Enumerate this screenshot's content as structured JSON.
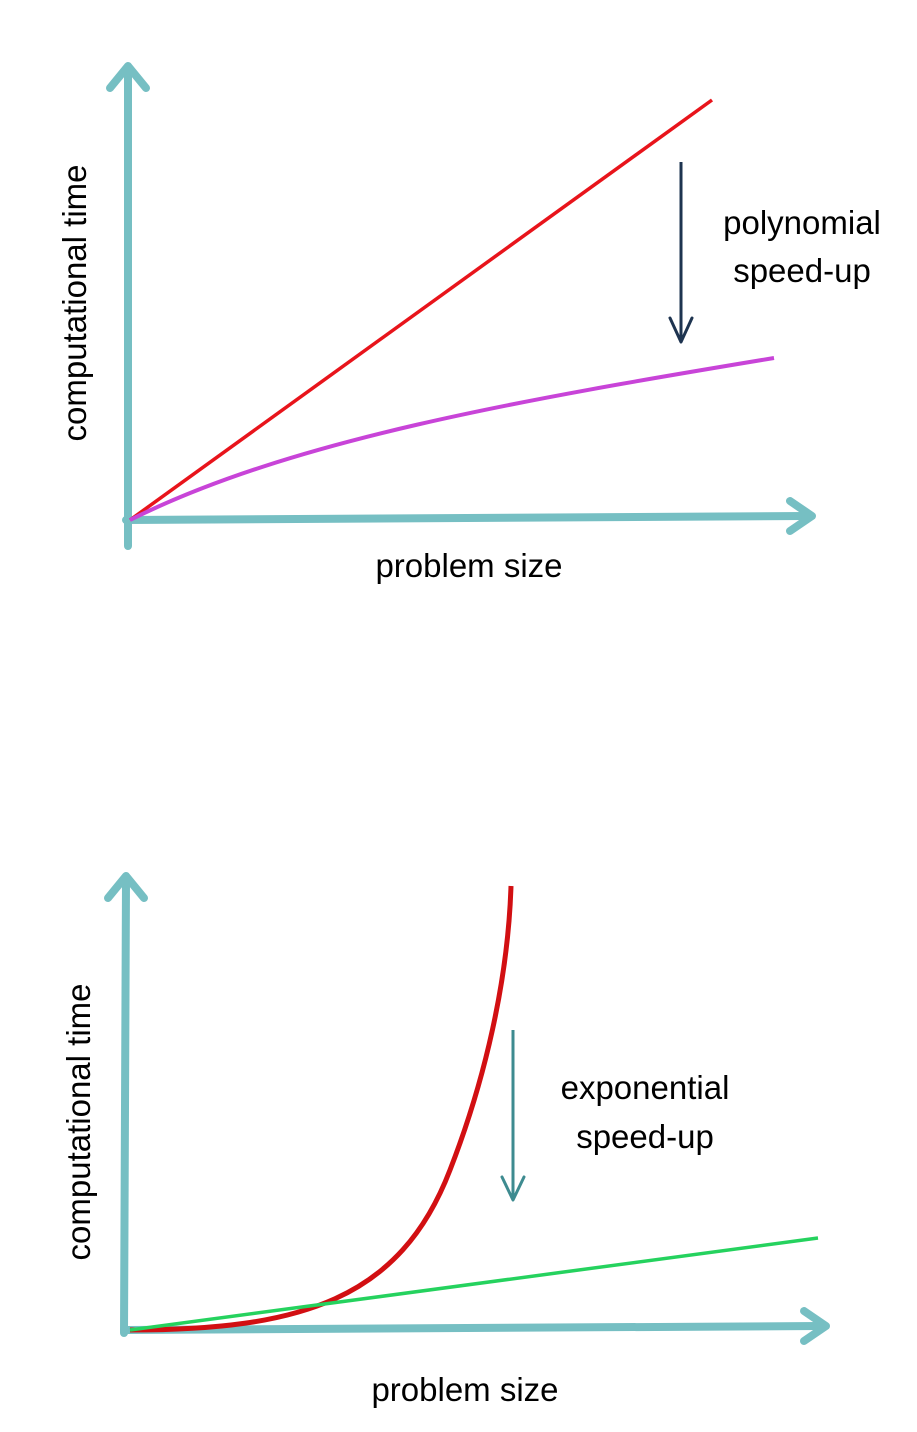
{
  "colors": {
    "axis": "#76BFC3",
    "linear_curve": "#E8141B",
    "sqrt_curve": "#C844D8",
    "exponential_curve": "#D20F12",
    "linear_fast_curve": "#25D25E",
    "poly_arrow": "#1E3450",
    "exp_arrow": "#3E8B90"
  },
  "top_panel": {
    "ylabel": "computational time",
    "xlabel": "problem size",
    "annotation_line1": "polynomial",
    "annotation_line2": "speed-up"
  },
  "bottom_panel": {
    "ylabel": "computational time",
    "xlabel": "problem size",
    "annotation_line1": "exponential",
    "annotation_line2": "speed-up"
  }
}
